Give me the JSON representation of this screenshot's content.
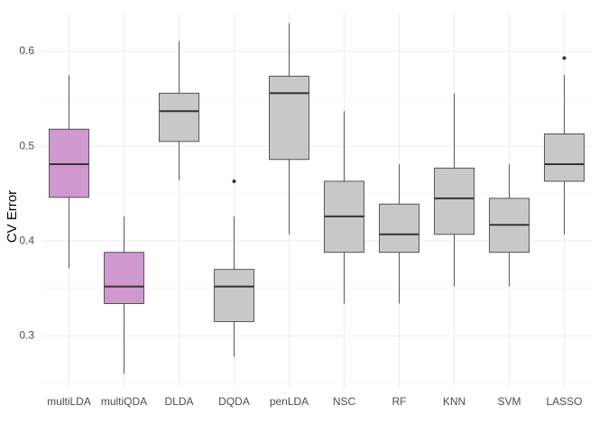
{
  "chart_data": {
    "type": "box",
    "y_label": "CV Error",
    "categories": [
      "multiLDA",
      "multiQDA",
      "DLDA",
      "DQDA",
      "penLDA",
      "NSC",
      "RF",
      "KNN",
      "SVM",
      "LASSO"
    ],
    "min": [
      0.371,
      0.26,
      0.464,
      0.278,
      0.407,
      0.334,
      0.334,
      0.352,
      0.352,
      0.407
    ],
    "q1": [
      0.446,
      0.334,
      0.505,
      0.315,
      0.486,
      0.388,
      0.388,
      0.407,
      0.388,
      0.463
    ],
    "median": [
      0.481,
      0.352,
      0.537,
      0.352,
      0.556,
      0.426,
      0.407,
      0.445,
      0.417,
      0.481
    ],
    "q3": [
      0.518,
      0.388,
      0.556,
      0.37,
      0.574,
      0.463,
      0.439,
      0.477,
      0.445,
      0.513
    ],
    "max": [
      0.575,
      0.426,
      0.611,
      0.426,
      0.63,
      0.537,
      0.481,
      0.556,
      0.481,
      0.575
    ],
    "outliers": [
      [],
      [],
      [],
      [
        0.463
      ],
      [],
      [],
      [],
      [],
      [],
      [
        0.593
      ]
    ],
    "colors": [
      "#cf98cf",
      "#cf98cf",
      "#c8c8c8",
      "#c8c8c8",
      "#c8c8c8",
      "#c8c8c8",
      "#c8c8c8",
      "#c8c8c8",
      "#c8c8c8",
      "#c8c8c8"
    ],
    "ylim": [
      0.245,
      0.64
    ],
    "yticks": [
      0.3,
      0.4,
      0.5,
      0.6
    ],
    "minor_yticks": [
      0.25,
      0.35,
      0.45,
      0.55
    ],
    "grid": true
  }
}
